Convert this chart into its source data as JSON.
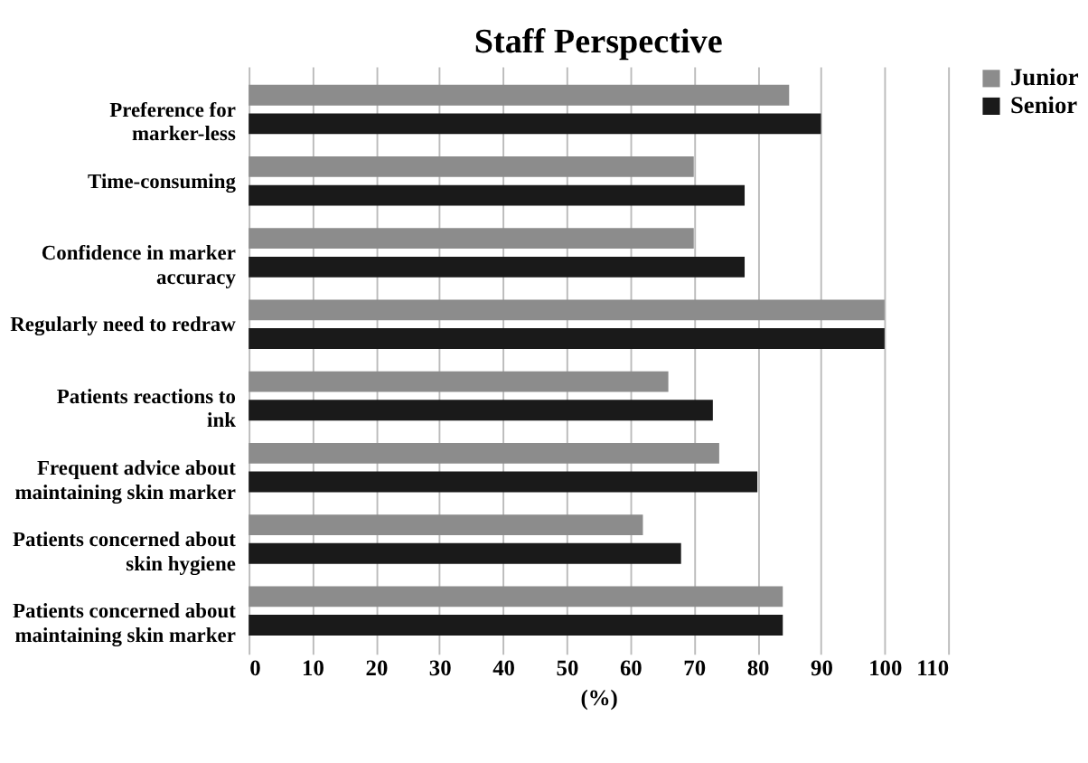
{
  "chart_data": {
    "type": "bar",
    "orientation": "horizontal",
    "title": "Staff Perspective",
    "xlabel": "(%)",
    "categories": [
      "Preference for marker-less",
      "Time-consuming",
      "Confidence in marker accuracy",
      "Regularly need to redraw",
      "Patients reactions to ink",
      "Frequent advice about maintaining skin marker",
      "Patients concerned about skin hygiene",
      "Patients concerned about maintaining skin marker"
    ],
    "series": [
      {
        "name": "Junior",
        "color": "#8c8c8c",
        "values": [
          85,
          70,
          70,
          100,
          66,
          74,
          62,
          84
        ]
      },
      {
        "name": "Senior",
        "color": "#1a1a1a",
        "values": [
          90,
          78,
          78,
          100,
          73,
          80,
          68,
          84
        ]
      }
    ],
    "xlim": [
      0,
      110
    ],
    "xticks": [
      0,
      10,
      20,
      30,
      40,
      50,
      60,
      70,
      80,
      90,
      100,
      110
    ],
    "grid": "x",
    "legend": "right"
  }
}
